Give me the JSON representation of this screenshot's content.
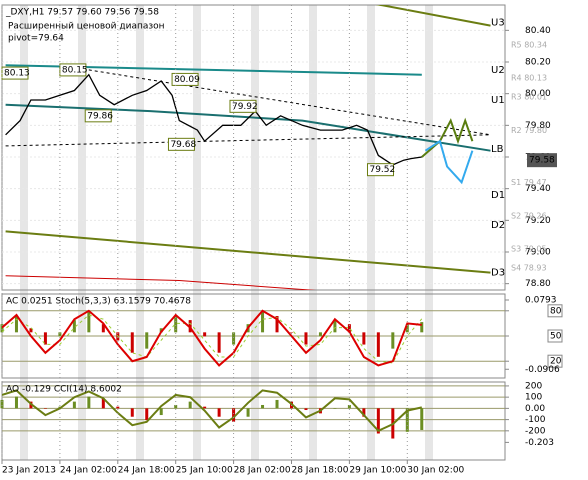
{
  "chart_data": [
    {
      "type": "line",
      "title": "_DXY,H1 79.57 79.60 79.56 79.58",
      "notes": [
        "Расширенный ценовой диапазон",
        "pivot=79.64"
      ],
      "xlim": [
        0,
        139
      ],
      "ylim": [
        78.76,
        80.56
      ],
      "yticks": [
        {
          "value": 80.4,
          "label": "80.40"
        },
        {
          "value": 80.2,
          "label": "80.20"
        },
        {
          "value": 80.0,
          "label": "80.00"
        },
        {
          "value": 79.8,
          "label": "79.80"
        },
        {
          "value": 79.6,
          "label": "79.60"
        },
        {
          "value": 79.4,
          "label": "79.40"
        },
        {
          "value": 79.2,
          "label": "79.20"
        },
        {
          "value": 79.0,
          "label": "79.00"
        },
        {
          "value": 78.8,
          "label": "78.80"
        }
      ],
      "series": [
        {
          "color": "#6b7d12",
          "width": 2,
          "x": [
            100,
            135
          ],
          "values": [
            80.58,
            80.43
          ]
        },
        {
          "color": "#1a8a8a",
          "width": 2,
          "x": [
            1,
            116
          ],
          "values": [
            80.18,
            80.12
          ]
        },
        {
          "color": "#1a6f6f",
          "width": 2,
          "x": [
            1,
            41,
            83,
            135
          ],
          "values": [
            79.93,
            79.89,
            79.83,
            79.64
          ]
        },
        {
          "color": "#000000",
          "width": 1,
          "dash": true,
          "x": [
            24,
            135
          ],
          "values": [
            80.15,
            79.74
          ]
        },
        {
          "color": "#000000",
          "width": 1,
          "dash": true,
          "x": [
            1,
            135
          ],
          "values": [
            79.67,
            79.74
          ]
        },
        {
          "color": "#6b7d12",
          "width": 2,
          "x": [
            1,
            135
          ],
          "values": [
            79.13,
            78.87
          ]
        },
        {
          "color": "#cc0000",
          "width": 1,
          "x": [
            1,
            49,
            91
          ],
          "values": [
            78.85,
            78.82,
            78.75
          ]
        },
        {
          "color": "#000000",
          "width": 1.3,
          "x": [
            1,
            5,
            8,
            12,
            16,
            20,
            24,
            27,
            31,
            36,
            40,
            44,
            47,
            49,
            54,
            56,
            61,
            66,
            70,
            73,
            77,
            83,
            88,
            94,
            98,
            101,
            104,
            108,
            111,
            113,
            116
          ],
          "values": [
            79.74,
            79.83,
            79.96,
            79.96,
            79.99,
            80.02,
            80.12,
            79.99,
            79.93,
            79.99,
            80.02,
            80.08,
            79.99,
            79.83,
            79.77,
            79.7,
            79.8,
            79.8,
            79.89,
            79.8,
            79.86,
            79.8,
            79.77,
            79.77,
            79.8,
            79.77,
            79.61,
            79.55,
            79.58,
            79.59,
            79.6
          ]
        },
        {
          "color": "#5a7d10",
          "width": 2,
          "x": [
            116,
            121,
            124,
            126,
            128,
            130
          ],
          "values": [
            79.6,
            79.7,
            79.83,
            79.7,
            79.83,
            79.7
          ]
        },
        {
          "color": "#33aaee",
          "width": 2,
          "x": [
            117,
            121,
            123,
            127,
            130
          ],
          "values": [
            79.64,
            79.7,
            79.54,
            79.44,
            79.64
          ]
        }
      ],
      "price_labels": [
        {
          "x": 0,
          "value": 80.13
        },
        {
          "x": 16,
          "value": 80.15
        },
        {
          "x": 23,
          "value": 79.86
        },
        {
          "x": 47,
          "value": 80.09
        },
        {
          "x": 63,
          "value": 79.92
        },
        {
          "x": 46,
          "value": 79.68
        },
        {
          "x": 101,
          "value": 79.52
        }
      ],
      "levels": [
        {
          "label": "U3",
          "value": 80.45
        },
        {
          "label": "U2",
          "value": 80.15
        },
        {
          "label": "U1",
          "value": 79.96
        },
        {
          "label": "LB",
          "value": 79.65
        },
        {
          "label": "D1",
          "value": 79.36
        },
        {
          "label": "D2",
          "value": 79.17
        },
        {
          "label": "D3",
          "value": 78.87
        }
      ],
      "pivots": [
        {
          "value": 80.34,
          "label": "R5 80.34"
        },
        {
          "value": 80.13,
          "label": "R4 80.13"
        },
        {
          "value": 80.01,
          "label": "R3 80.01"
        },
        {
          "value": 79.8,
          "label": "R2 79.80"
        },
        {
          "value": 79.47,
          "label": "S1 79.47"
        },
        {
          "value": 79.26,
          "label": "S2 79.26"
        },
        {
          "value": 79.05,
          "label": "S3 79.05"
        },
        {
          "value": 78.93,
          "label": "S4 78.93"
        }
      ],
      "current_price": 79.58
    },
    {
      "type": "oscillator",
      "title": "AC 0.0251 Stoch(5,3,3) 63.1579 70.4678",
      "xlim": [
        0,
        139
      ],
      "ylim": [
        0,
        100
      ],
      "yticks": [
        80,
        50,
        20
      ],
      "y2lim": [
        -0.112,
        0.094
      ],
      "y2ticks": [
        0.0793,
        -0.0906
      ],
      "series": [
        {
          "style": "bar",
          "axis": "y2",
          "color": "#6b8e23",
          "down_color": "#cc0000",
          "x": [
            0,
            4,
            8,
            12,
            16,
            20,
            24,
            28,
            32,
            36,
            40,
            44,
            48,
            52,
            56,
            60,
            64,
            68,
            72,
            76,
            80,
            84,
            88,
            92,
            96,
            100,
            104,
            108,
            112,
            116
          ],
          "values": [
            0.02,
            0.04,
            0.01,
            -0.03,
            -0.01,
            0.03,
            0.05,
            0.02,
            -0.02,
            -0.05,
            -0.04,
            0.01,
            0.04,
            0.03,
            -0.01,
            -0.05,
            -0.03,
            0.02,
            0.05,
            0.04,
            0.0,
            -0.03,
            -0.01,
            0.03,
            0.02,
            -0.03,
            -0.06,
            -0.04,
            0.02,
            0.0251
          ]
        },
        {
          "style": "line",
          "color": "#9acd32",
          "width": 1,
          "dash": true,
          "x": [
            0,
            4,
            8,
            12,
            16,
            20,
            24,
            28,
            32,
            36,
            40,
            44,
            48,
            52,
            56,
            60,
            64,
            68,
            72,
            76,
            80,
            84,
            88,
            92,
            96,
            100,
            104,
            108,
            112,
            116
          ],
          "values": [
            55,
            70,
            60,
            40,
            40,
            60,
            75,
            70,
            50,
            30,
            25,
            45,
            65,
            65,
            45,
            25,
            25,
            50,
            70,
            72,
            58,
            38,
            40,
            60,
            60,
            35,
            20,
            18,
            50,
            70.4678
          ]
        },
        {
          "style": "line",
          "color": "#dd0000",
          "width": 2,
          "x": [
            0,
            4,
            8,
            12,
            16,
            20,
            24,
            28,
            32,
            36,
            40,
            44,
            48,
            52,
            56,
            60,
            64,
            68,
            72,
            76,
            80,
            84,
            88,
            92,
            96,
            100,
            104,
            108,
            112,
            116
          ],
          "values": [
            60,
            75,
            50,
            30,
            45,
            70,
            80,
            65,
            40,
            20,
            25,
            55,
            75,
            60,
            35,
            15,
            30,
            60,
            80,
            70,
            50,
            30,
            45,
            70,
            55,
            25,
            15,
            20,
            65,
            63.1579
          ]
        }
      ]
    },
    {
      "type": "oscillator",
      "title": "AO -0.129 CCI(14) 8.6002",
      "xlim": [
        0,
        139
      ],
      "ylim": [
        -460,
        235
      ],
      "yticks": [
        200,
        100,
        {
          "value": 0,
          "label": "0.00"
        },
        -100,
        -200
      ],
      "y2lim": [
        -0.308,
        0.157
      ],
      "y2ticks": [
        -0.203
      ],
      "xticks": [
        {
          "value": 0,
          "label": "23 Jan 2013"
        },
        {
          "value": 16,
          "label": "24 Jan 02:00"
        },
        {
          "value": 32,
          "label": "24 Jan 18:00"
        },
        {
          "value": 48,
          "label": "25 Jan 10:00"
        },
        {
          "value": 64,
          "label": "28 Jan 02:00"
        },
        {
          "value": 80,
          "label": "28 Jan 18:00"
        },
        {
          "value": 96,
          "label": "29 Jan 10:00"
        },
        {
          "value": 112,
          "label": "30 Jan 02:00"
        }
      ],
      "series": [
        {
          "style": "bar",
          "axis": "y2",
          "color": "#6b8e23",
          "down_color": "#cc0000",
          "x": [
            0,
            4,
            8,
            12,
            16,
            20,
            24,
            28,
            32,
            36,
            40,
            44,
            48,
            52,
            56,
            60,
            64,
            68,
            72,
            76,
            80,
            84,
            88,
            92,
            96,
            100,
            104,
            108,
            112,
            116
          ],
          "values": [
            0.05,
            0.07,
            0.04,
            0.0,
            0.01,
            0.04,
            0.07,
            0.06,
            0.01,
            -0.05,
            -0.07,
            -0.04,
            0.02,
            0.04,
            0.01,
            -0.05,
            -0.08,
            -0.05,
            0.02,
            0.05,
            0.04,
            -0.01,
            -0.03,
            0.0,
            0.02,
            -0.05,
            -0.15,
            -0.18,
            -0.14,
            -0.129
          ]
        },
        {
          "style": "line",
          "color": "#6b7d12",
          "width": 2,
          "x": [
            0,
            4,
            8,
            12,
            16,
            20,
            24,
            28,
            32,
            36,
            40,
            44,
            48,
            52,
            56,
            60,
            64,
            68,
            72,
            76,
            80,
            84,
            88,
            92,
            96,
            100,
            104,
            108,
            112,
            116
          ],
          "values": [
            120,
            160,
            40,
            -60,
            0,
            100,
            150,
            90,
            -40,
            -150,
            -120,
            20,
            120,
            100,
            -20,
            -170,
            -80,
            50,
            160,
            140,
            40,
            -80,
            -20,
            90,
            80,
            -60,
            -200,
            -140,
            -20,
            8.6002
          ]
        }
      ]
    }
  ]
}
